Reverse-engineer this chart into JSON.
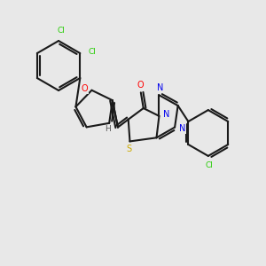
{
  "bg_color": "#e8e8e8",
  "bond_color": "#1a1a1a",
  "atom_colors": {
    "O": "#ff0000",
    "N": "#0000ee",
    "S": "#ccaa00",
    "Cl": "#22cc00",
    "H": "#555555",
    "C": "#1a1a1a"
  },
  "lw": 1.5,
  "dbl_off": 0.09,
  "shrink": 0.1
}
